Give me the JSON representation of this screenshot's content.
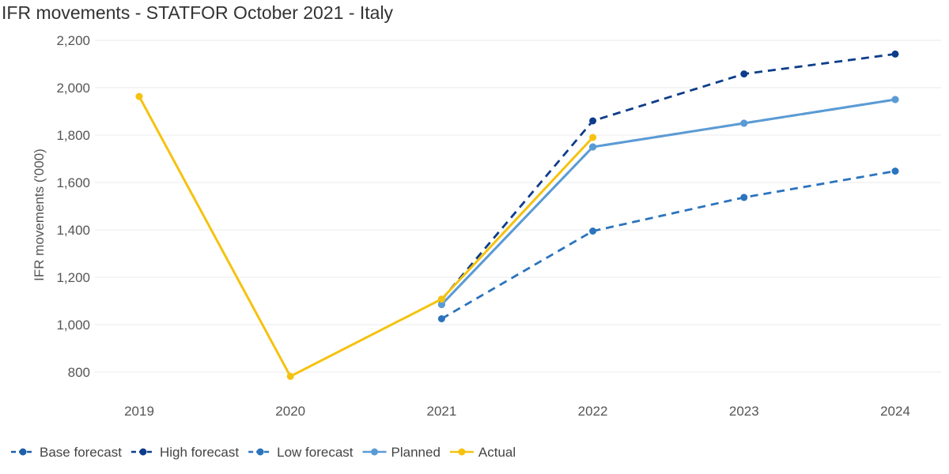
{
  "chart_data": {
    "type": "line",
    "title": "IFR movements - STATFOR October 2021 - Italy",
    "ylabel": "IFR movements ('000)",
    "xlabel": "",
    "categories": [
      "2019",
      "2020",
      "2021",
      "2022",
      "2023",
      "2024"
    ],
    "ylim": [
      700,
      2200
    ],
    "yticks": [
      800,
      1000,
      1200,
      1400,
      1600,
      1800,
      2000,
      2200
    ],
    "ytick_labels": [
      "800",
      "1,000",
      "1,200",
      "1,400",
      "1,600",
      "1,800",
      "2,000",
      "2,200"
    ],
    "grid": true,
    "legend_position": "bottom-left",
    "series": [
      {
        "name": "Base forecast",
        "color": "#1f5fa8",
        "dashed": true,
        "values": [
          null,
          null,
          1085,
          1750,
          1850,
          1950
        ]
      },
      {
        "name": "High forecast",
        "color": "#0d3d8a",
        "dashed": true,
        "values": [
          null,
          null,
          1105,
          1860,
          2058,
          2142
        ]
      },
      {
        "name": "Low forecast",
        "color": "#2b74bd",
        "dashed": true,
        "values": [
          null,
          null,
          1025,
          1395,
          1537,
          1648
        ]
      },
      {
        "name": "Planned",
        "color": "#5b9bd5",
        "dashed": false,
        "values": [
          null,
          null,
          1085,
          1750,
          1850,
          1950
        ]
      },
      {
        "name": "Actual",
        "color": "#f5c20f",
        "dashed": false,
        "values": [
          1963,
          782,
          1108,
          1790,
          null,
          null
        ]
      }
    ]
  }
}
